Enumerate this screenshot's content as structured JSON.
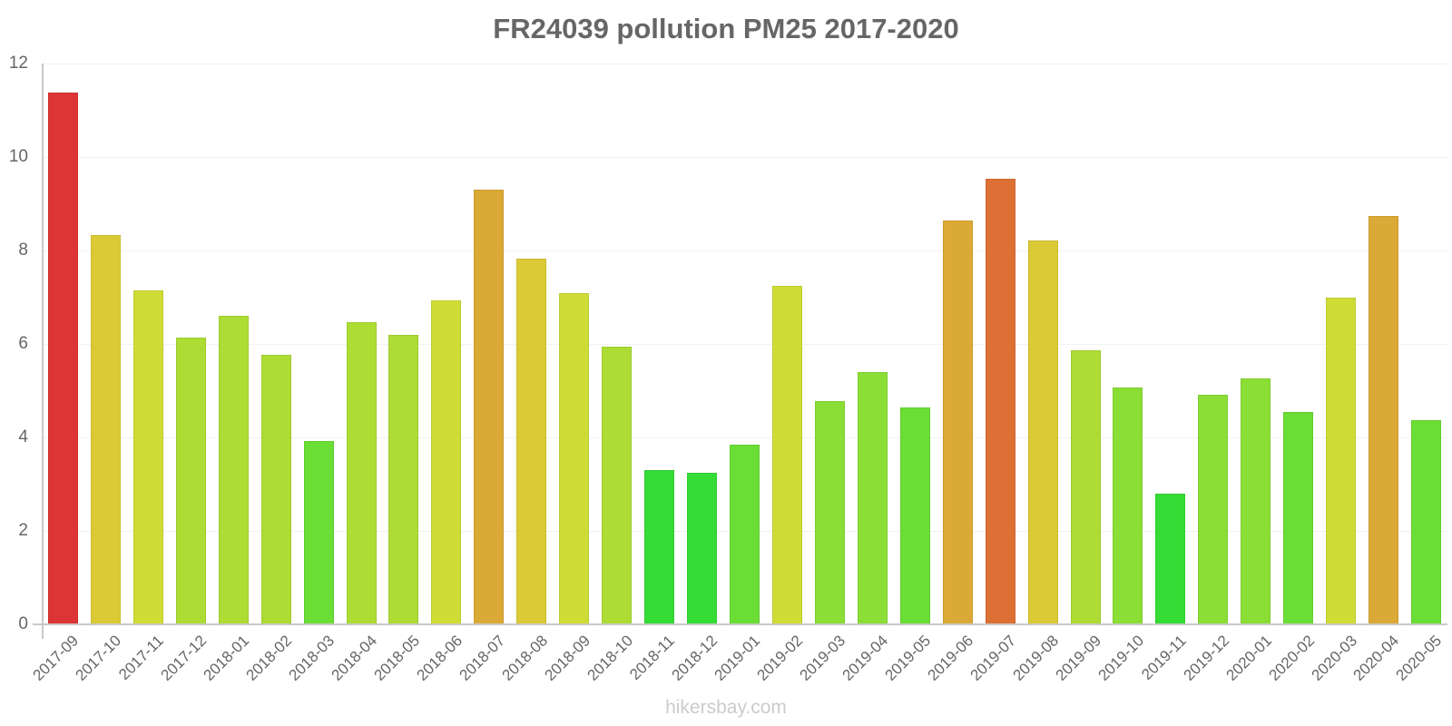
{
  "title": "FR24039 pollution PM25 2017-2020",
  "watermark": "hikersbay.com",
  "colors": {
    "very_high": "#dd3535",
    "high": "#dd7035",
    "elevated": "#dba935",
    "moderate_high": "#dbca35",
    "moderate": "#cfdc35",
    "fair": "#addc35",
    "good": "#8ade35",
    "very_good": "#6ade35",
    "excellent": "#35dc35"
  },
  "chart_data": {
    "type": "bar",
    "title": "FR24039 pollution PM25 2017-2020",
    "xlabel": "",
    "ylabel": "",
    "ylim": [
      0,
      12
    ],
    "yticks": [
      0,
      2,
      4,
      6,
      8,
      10,
      12
    ],
    "grid": true,
    "legend": null,
    "categories": [
      "2017-09",
      "2017-10",
      "2017-11",
      "2017-12",
      "2018-01",
      "2018-02",
      "2018-03",
      "2018-04",
      "2018-05",
      "2018-06",
      "2018-07",
      "2018-08",
      "2018-09",
      "2018-10",
      "2018-11",
      "2018-12",
      "2019-01",
      "2019-02",
      "2019-03",
      "2019-04",
      "2019-05",
      "2019-06",
      "2019-07",
      "2019-08",
      "2019-09",
      "2019-10",
      "2019-11",
      "2019-12",
      "2020-01",
      "2020-02",
      "2020-03",
      "2020-04",
      "2020-05"
    ],
    "values": [
      11.38,
      8.34,
      7.15,
      6.14,
      6.6,
      5.77,
      3.93,
      6.47,
      6.19,
      6.94,
      9.31,
      7.83,
      7.09,
      5.94,
      3.31,
      3.25,
      3.84,
      7.24,
      4.77,
      5.4,
      4.65,
      8.65,
      9.54,
      8.21,
      5.87,
      5.06,
      2.8,
      4.91,
      5.26,
      4.54,
      7.0,
      8.74,
      4.37
    ],
    "bar_colors": [
      "#dd3535",
      "#dbca35",
      "#cfdc35",
      "#addc35",
      "#addc35",
      "#addc35",
      "#6ade35",
      "#addc35",
      "#addc35",
      "#cfdc35",
      "#dba935",
      "#dbca35",
      "#cfdc35",
      "#addc35",
      "#35dc35",
      "#35dc35",
      "#6ade35",
      "#cfdc35",
      "#8ade35",
      "#8ade35",
      "#6ade35",
      "#dba935",
      "#dd7035",
      "#dbca35",
      "#addc35",
      "#8ade35",
      "#35dc35",
      "#8ade35",
      "#8ade35",
      "#6ade35",
      "#cfdc35",
      "#dba935",
      "#6ade35"
    ]
  }
}
